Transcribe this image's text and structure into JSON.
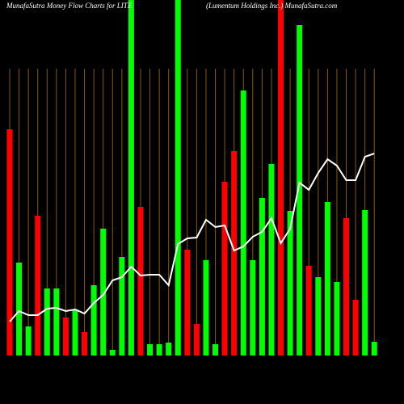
{
  "chart_data": {
    "type": "bar-line",
    "title": "MunafaSutra  Money Flow  Charts for LITE",
    "subtitle": "(Lumentum Holdings Inc.) MunafaSutra.com",
    "categories": [
      null,
      null,
      null,
      null,
      null,
      null,
      null,
      null,
      null,
      null,
      null,
      null,
      null,
      null,
      null,
      null,
      null,
      null,
      null,
      null,
      null,
      null,
      null,
      null,
      null,
      null,
      null,
      null,
      null,
      null,
      null,
      null,
      null,
      null,
      null,
      null,
      null,
      null,
      null,
      null
    ],
    "bars": {
      "values": [
        280,
        115,
        36,
        173,
        83,
        83,
        47,
        57,
        29,
        87,
        157,
        7,
        122,
        440,
        184,
        14,
        14,
        16,
        440,
        131,
        39,
        118,
        14,
        215,
        253,
        328,
        118,
        195,
        237,
        440,
        179,
        409,
        111,
        97,
        190,
        91,
        170,
        69,
        180,
        17
      ],
      "colors": [
        "#ff0000",
        "#00ff00",
        "#00ff00",
        "#ff0000",
        "#00ff00",
        "#00ff00",
        "#ff0000",
        "#00ff00",
        "#ff0000",
        "#00ff00",
        "#00ff00",
        "#00ff00",
        "#00ff00",
        "#00ff00",
        "#ff0000",
        "#00ff00",
        "#00ff00",
        "#00ff00",
        "#00ff00",
        "#ff0000",
        "#ff0000",
        "#00ff00",
        "#00ff00",
        "#ff0000",
        "#ff0000",
        "#00ff00",
        "#00ff00",
        "#00ff00",
        "#00ff00",
        "#ff0000",
        "#00ff00",
        "#00ff00",
        "#ff0000",
        "#00ff00",
        "#00ff00",
        "#00ff00",
        "#ff0000",
        "#ff0000",
        "#00ff00",
        "#00ff00"
      ]
    },
    "line": {
      "values": [
        42,
        55,
        50,
        50,
        58,
        59,
        55,
        57,
        52,
        65,
        75,
        93,
        97,
        110,
        99,
        100,
        100,
        87,
        138,
        145,
        146,
        168,
        159,
        161,
        130,
        135,
        147,
        153,
        170,
        139,
        157,
        214,
        205,
        226,
        243,
        235,
        217,
        217,
        246,
        250
      ],
      "color": "#ffffff"
    },
    "ylim": [
      0,
      440
    ],
    "grid": true,
    "grid_color": "#8b5a00",
    "background": "#000000"
  }
}
